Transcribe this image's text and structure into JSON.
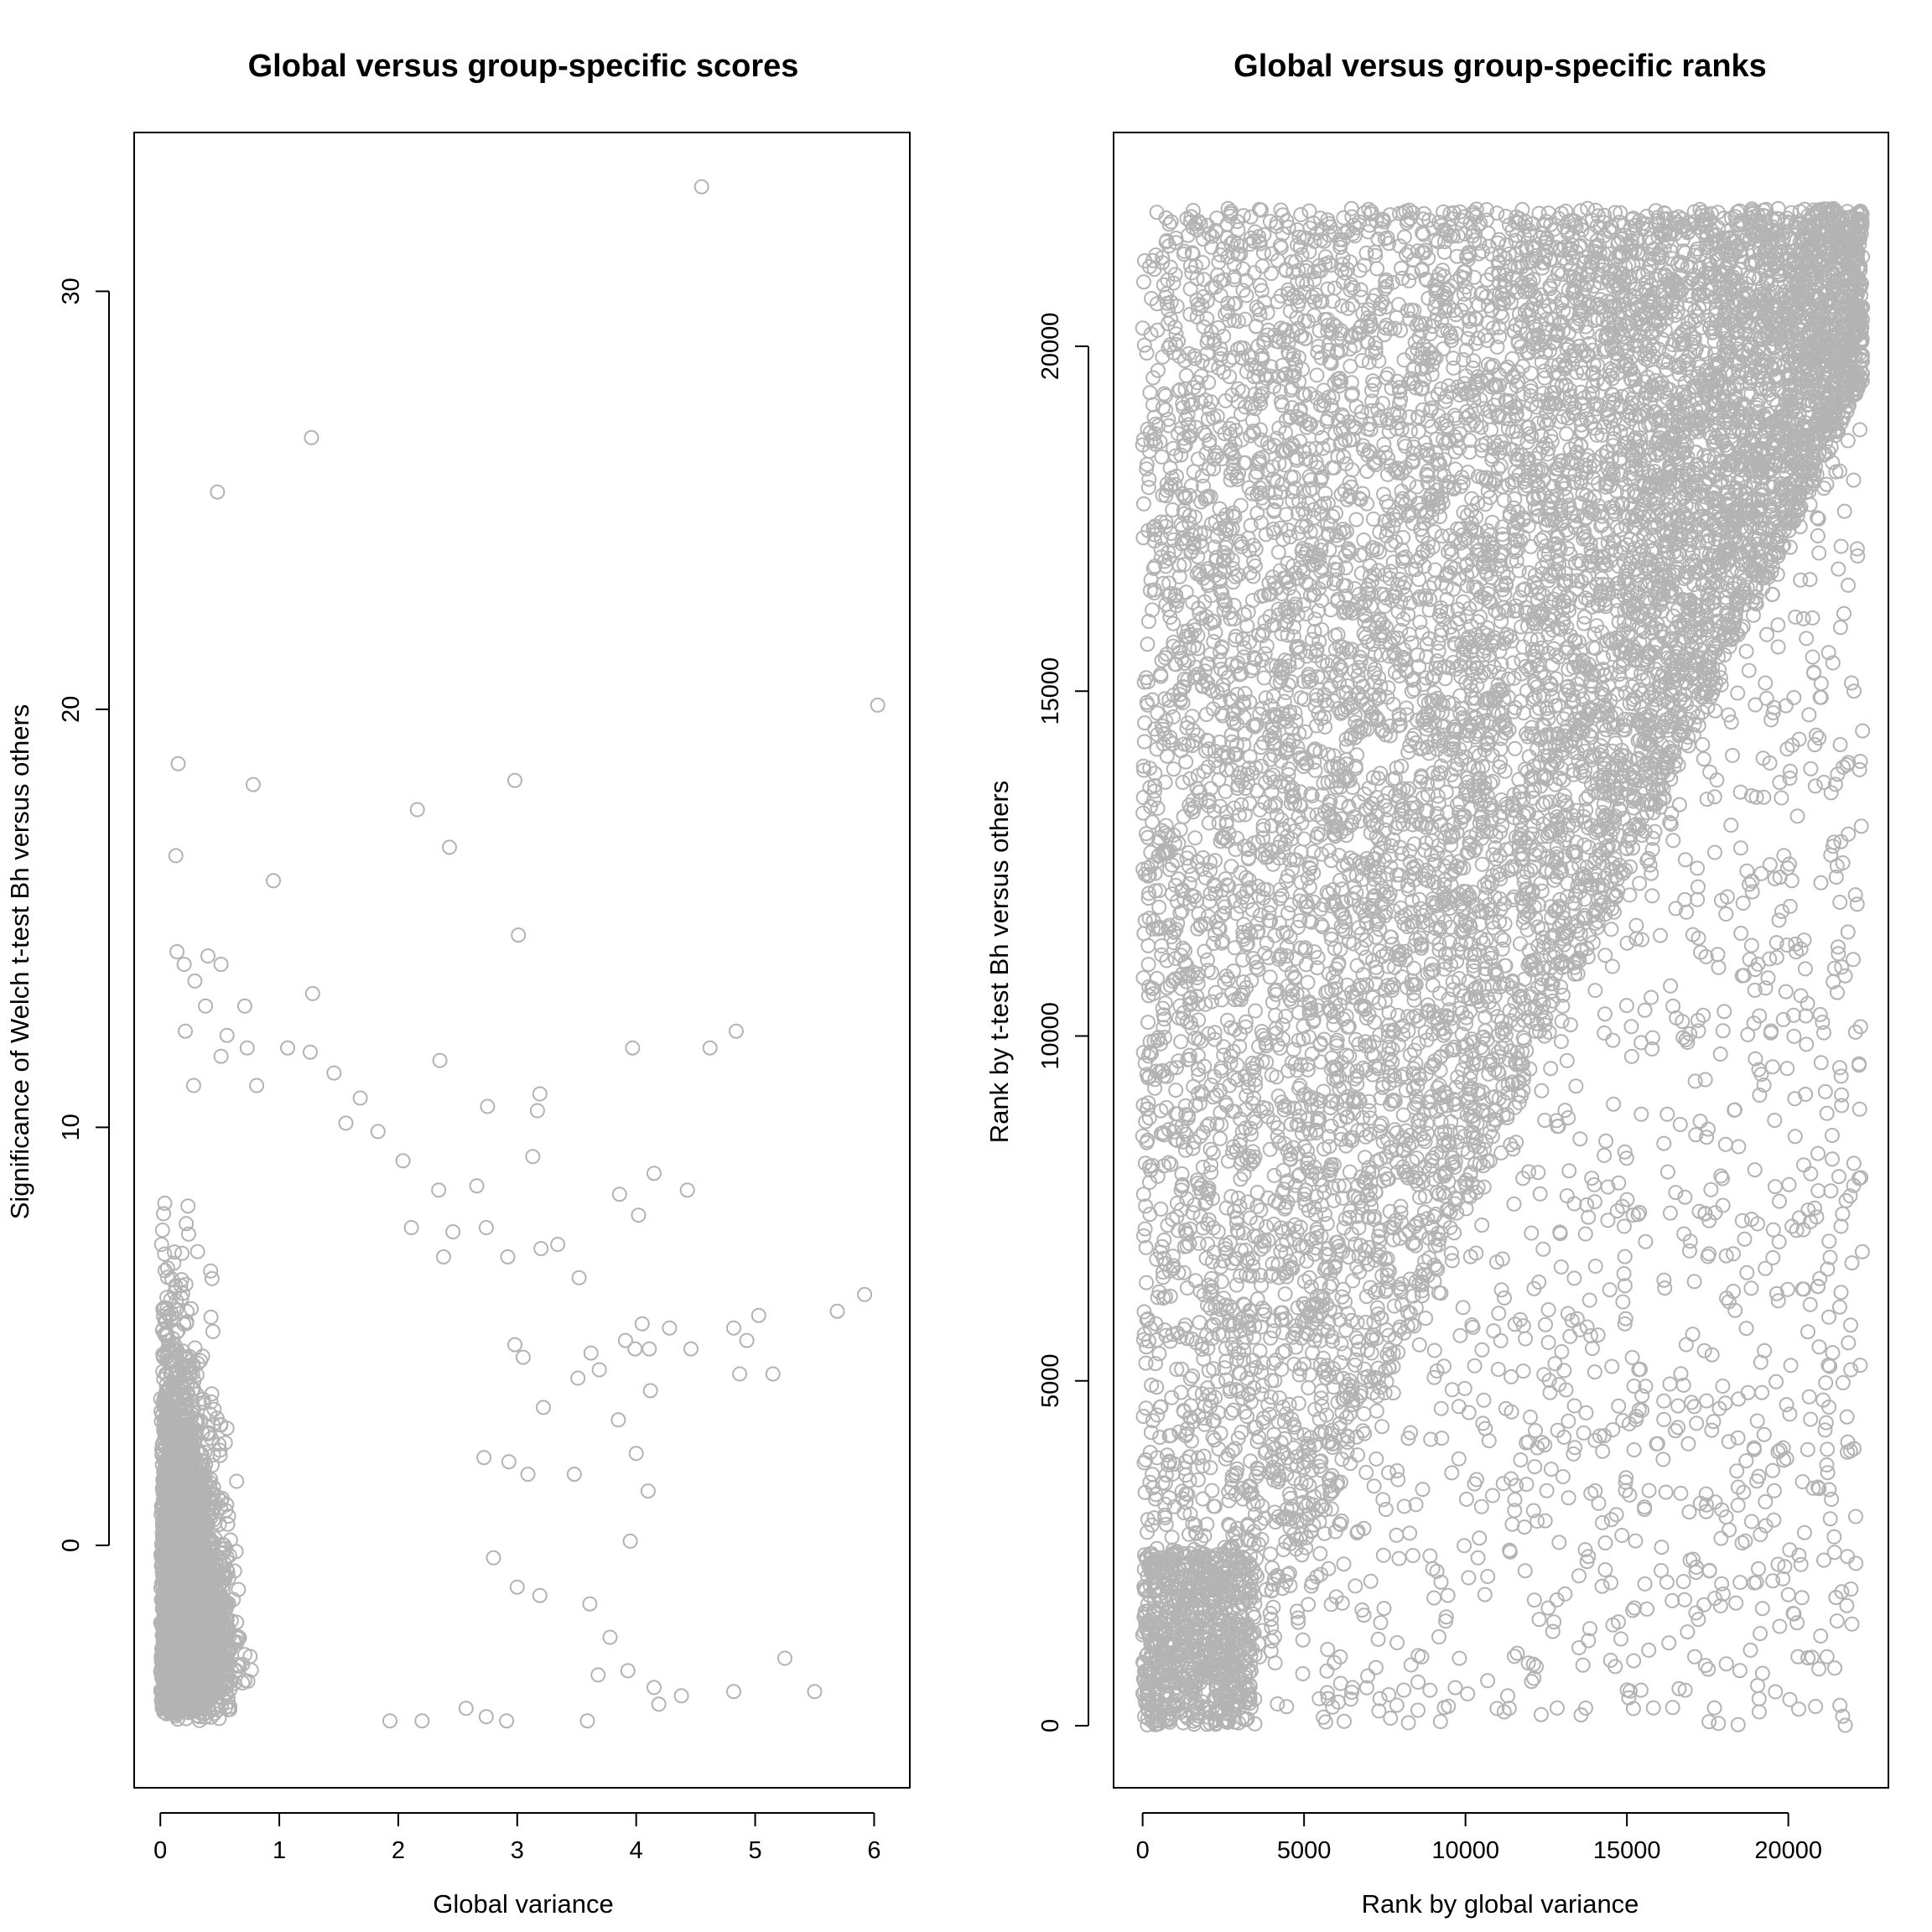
{
  "figure": {
    "point_color": "#b3b3b3"
  },
  "chart_data": [
    {
      "type": "scatter",
      "title": "Global versus group-specific scores",
      "xlabel": "Global variance",
      "ylabel": "Significance of Welch t-test Bh versus others",
      "xlim": [
        -0.22,
        6.3
      ],
      "ylim": [
        -5.8,
        33.8
      ],
      "xticks": [
        0,
        1,
        2,
        3,
        4,
        5,
        6
      ],
      "yticks": [
        0,
        10,
        20,
        30
      ],
      "grid": false,
      "marker": "open-circle",
      "density_model": {
        "n": 4500,
        "x_range": [
          0,
          2.2
        ],
        "y_range": [
          -4.2,
          8.5
        ],
        "note_visible": "dense gray band concentrated at low global variance"
      },
      "points": [
        {
          "x": 4.55,
          "y": 32.5
        },
        {
          "x": 1.27,
          "y": 26.5
        },
        {
          "x": 0.48,
          "y": 25.2
        },
        {
          "x": 6.03,
          "y": 20.1
        },
        {
          "x": 0.15,
          "y": 18.7
        },
        {
          "x": 0.78,
          "y": 18.2
        },
        {
          "x": 2.98,
          "y": 18.3
        },
        {
          "x": 2.16,
          "y": 17.6
        },
        {
          "x": 2.43,
          "y": 16.7
        },
        {
          "x": 0.13,
          "y": 16.5
        },
        {
          "x": 0.95,
          "y": 15.9
        },
        {
          "x": 3.01,
          "y": 14.6
        },
        {
          "x": 0.14,
          "y": 14.2
        },
        {
          "x": 0.4,
          "y": 14.1
        },
        {
          "x": 0.51,
          "y": 13.9
        },
        {
          "x": 0.2,
          "y": 13.9
        },
        {
          "x": 0.29,
          "y": 13.5
        },
        {
          "x": 0.71,
          "y": 12.9
        },
        {
          "x": 0.38,
          "y": 12.9
        },
        {
          "x": 1.28,
          "y": 13.2
        },
        {
          "x": 0.21,
          "y": 12.3
        },
        {
          "x": 4.84,
          "y": 12.3
        },
        {
          "x": 0.56,
          "y": 12.2
        },
        {
          "x": 3.97,
          "y": 11.9
        },
        {
          "x": 1.07,
          "y": 11.9
        },
        {
          "x": 4.62,
          "y": 11.9
        },
        {
          "x": 0.73,
          "y": 11.9
        },
        {
          "x": 1.26,
          "y": 11.8
        },
        {
          "x": 2.35,
          "y": 11.6
        },
        {
          "x": 0.51,
          "y": 11.7
        },
        {
          "x": 1.46,
          "y": 11.3
        },
        {
          "x": 0.28,
          "y": 11.0
        },
        {
          "x": 0.81,
          "y": 11.0
        },
        {
          "x": 1.68,
          "y": 10.7
        },
        {
          "x": 3.19,
          "y": 10.8
        },
        {
          "x": 2.75,
          "y": 10.5
        },
        {
          "x": 3.17,
          "y": 10.4
        },
        {
          "x": 1.56,
          "y": 10.1
        },
        {
          "x": 1.83,
          "y": 9.9
        },
        {
          "x": 3.13,
          "y": 9.3
        },
        {
          "x": 2.04,
          "y": 9.2
        },
        {
          "x": 4.15,
          "y": 8.9
        },
        {
          "x": 2.34,
          "y": 8.5
        },
        {
          "x": 2.66,
          "y": 8.6
        },
        {
          "x": 3.86,
          "y": 8.4
        },
        {
          "x": 4.43,
          "y": 8.5
        },
        {
          "x": 4.02,
          "y": 7.9
        },
        {
          "x": 2.11,
          "y": 7.6
        },
        {
          "x": 2.74,
          "y": 7.6
        },
        {
          "x": 2.46,
          "y": 7.5
        },
        {
          "x": 3.34,
          "y": 7.2
        },
        {
          "x": 3.2,
          "y": 7.1
        },
        {
          "x": 2.92,
          "y": 6.9
        },
        {
          "x": 2.38,
          "y": 6.9
        },
        {
          "x": 3.52,
          "y": 6.4
        },
        {
          "x": 5.92,
          "y": 6.0
        },
        {
          "x": 5.69,
          "y": 5.6
        },
        {
          "x": 5.03,
          "y": 5.5
        },
        {
          "x": 4.05,
          "y": 5.3
        },
        {
          "x": 4.28,
          "y": 5.2
        },
        {
          "x": 4.82,
          "y": 5.2
        },
        {
          "x": 4.93,
          "y": 4.9
        },
        {
          "x": 3.91,
          "y": 4.9
        },
        {
          "x": 3.99,
          "y": 4.7
        },
        {
          "x": 4.11,
          "y": 4.7
        },
        {
          "x": 3.62,
          "y": 4.6
        },
        {
          "x": 4.46,
          "y": 4.7
        },
        {
          "x": 3.05,
          "y": 4.5
        },
        {
          "x": 2.98,
          "y": 4.8
        },
        {
          "x": 3.69,
          "y": 4.2
        },
        {
          "x": 4.87,
          "y": 4.1
        },
        {
          "x": 5.15,
          "y": 4.1
        },
        {
          "x": 3.51,
          "y": 4.0
        },
        {
          "x": 4.12,
          "y": 3.7
        },
        {
          "x": 3.22,
          "y": 3.3
        },
        {
          "x": 3.85,
          "y": 3.0
        },
        {
          "x": 4.0,
          "y": 2.2
        },
        {
          "x": 2.72,
          "y": 2.1
        },
        {
          "x": 2.93,
          "y": 2.0
        },
        {
          "x": 3.09,
          "y": 1.7
        },
        {
          "x": 3.48,
          "y": 1.7
        },
        {
          "x": 4.1,
          "y": 1.3
        },
        {
          "x": 3.95,
          "y": 0.1
        },
        {
          "x": 2.8,
          "y": -0.3
        },
        {
          "x": 3.0,
          "y": -1.0
        },
        {
          "x": 3.19,
          "y": -1.2
        },
        {
          "x": 3.61,
          "y": -1.4
        },
        {
          "x": 3.78,
          "y": -2.2
        },
        {
          "x": 5.25,
          "y": -2.7
        },
        {
          "x": 3.93,
          "y": -3.0
        },
        {
          "x": 3.68,
          "y": -3.1
        },
        {
          "x": 4.15,
          "y": -3.4
        },
        {
          "x": 4.82,
          "y": -3.5
        },
        {
          "x": 5.5,
          "y": -3.5
        },
        {
          "x": 4.38,
          "y": -3.6
        },
        {
          "x": 4.19,
          "y": -3.8
        },
        {
          "x": 3.59,
          "y": -4.2
        },
        {
          "x": 2.91,
          "y": -4.2
        },
        {
          "x": 2.74,
          "y": -4.1
        },
        {
          "x": 2.57,
          "y": -3.9
        },
        {
          "x": 2.2,
          "y": -4.2
        },
        {
          "x": 1.93,
          "y": -4.2
        }
      ]
    },
    {
      "type": "scatter",
      "title": "Global versus group-specific ranks",
      "xlabel": "Rank by global variance",
      "ylabel": "Rank by t-test Bh versus others",
      "xlim": [
        -900,
        23100
      ],
      "ylim": [
        -900,
        23100
      ],
      "xticks": [
        0,
        5000,
        10000,
        15000,
        20000
      ],
      "yticks": [
        0,
        5000,
        10000,
        15000,
        20000
      ],
      "grid": false,
      "marker": "open-circle",
      "density_model": {
        "n": 11000,
        "x_range": [
          0,
          22300
        ],
        "y_range": [
          0,
          22000
        ],
        "note_visible": "points fill the upper-left triangle densely, sparser toward lower right"
      },
      "points": [
        {
          "x": 19100,
          "y": 200
        },
        {
          "x": 21200,
          "y": 1000
        },
        {
          "x": 18500,
          "y": 800
        },
        {
          "x": 15100,
          "y": 500
        },
        {
          "x": 11200,
          "y": 200
        },
        {
          "x": 21000,
          "y": 1300
        },
        {
          "x": 20000,
          "y": 1900
        },
        {
          "x": 19200,
          "y": 1700
        },
        {
          "x": 20300,
          "y": 1000
        },
        {
          "x": 17100,
          "y": 1000
        },
        {
          "x": 16300,
          "y": 1200
        },
        {
          "x": 21100,
          "y": 2400
        },
        {
          "x": 19300,
          "y": 2900
        },
        {
          "x": 20500,
          "y": 2800
        },
        {
          "x": 21300,
          "y": 3000
        }
      ]
    }
  ]
}
